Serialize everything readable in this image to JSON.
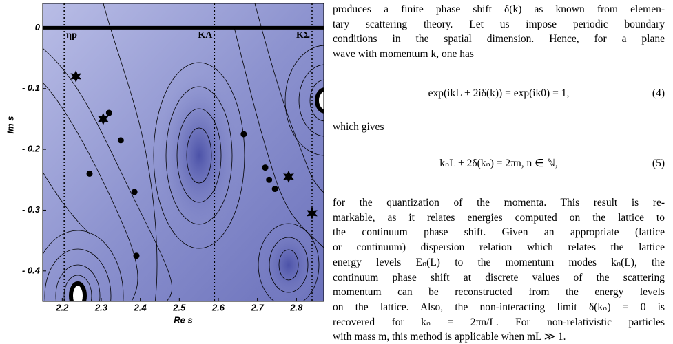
{
  "chart_data": {
    "type": "scatter",
    "x_label": "Re s",
    "y_label": "Im s",
    "xlim": [
      2.15,
      2.87
    ],
    "ylim": [
      -0.45,
      0.04
    ],
    "xticks": [
      2.2,
      2.3,
      2.4,
      2.5,
      2.6,
      2.7,
      2.8
    ],
    "yticks": [
      0,
      {
        "value": -0.1,
        "label": "- 0.1"
      },
      {
        "value": -0.2,
        "label": "- 0.2"
      },
      {
        "value": -0.3,
        "label": "- 0.3"
      },
      {
        "value": -0.4,
        "label": "- 0.4"
      }
    ],
    "thresholds": [
      {
        "text": "ηp",
        "x": 2.205
      },
      {
        "text": "KΛ",
        "x": 2.59
      },
      {
        "text": "KΣ",
        "x": 2.84
      }
    ],
    "series": [
      {
        "marker": "star",
        "color": "#000000",
        "x": [
          2.235,
          2.305,
          2.78,
          2.84
        ],
        "values": [
          -0.08,
          -0.15,
          -0.245,
          -0.305
        ]
      },
      {
        "marker": "dot",
        "color": "#000000",
        "x": [
          2.32,
          2.35,
          2.27,
          2.385,
          2.39,
          2.665,
          2.72,
          2.73,
          2.745
        ],
        "values": [
          -0.14,
          -0.185,
          -0.24,
          -0.27,
          -0.375,
          -0.175,
          -0.23,
          -0.25,
          -0.265
        ]
      }
    ]
  },
  "text": {
    "paragraph_1": [
      "produces a finite phase shift δ(k) as known from elemen-",
      "tary scattering theory. Let us impose periodic boundary",
      "conditions in the spatial dimension. Hence, for a plane",
      "wave with momentum k, one has"
    ],
    "equation_4": {
      "text": "exp(ikL + 2iδ(k)) = exp(ik0) = 1,",
      "number": "(4)"
    },
    "which_gives": "which gives",
    "equation_5": {
      "text": "kₙL + 2δ(kₙ) = 2πn,    n ∈ ℕ,",
      "number": "(5)"
    },
    "paragraph_2": [
      "for the quantization of the momenta. This result is re-",
      "markable, as it relates energies computed on the lattice to",
      "the continuum phase shift. Given an appropriate (lattice",
      "or continuum) dispersion relation which relates the lattice",
      "energy levels Eₙ(L) to the momentum modes kₙ(L), the",
      "continuum phase shift at discrete values of the scattering",
      "momentum can be reconstructed from the energy levels",
      "on the lattice. Also, the non-interacting limit δ(kₙ) = 0 is",
      "recovered for kₙ = 2πn/L. For non-relativistic particles",
      "with mass m, this method is applicable when mL ≫ 1."
    ]
  }
}
